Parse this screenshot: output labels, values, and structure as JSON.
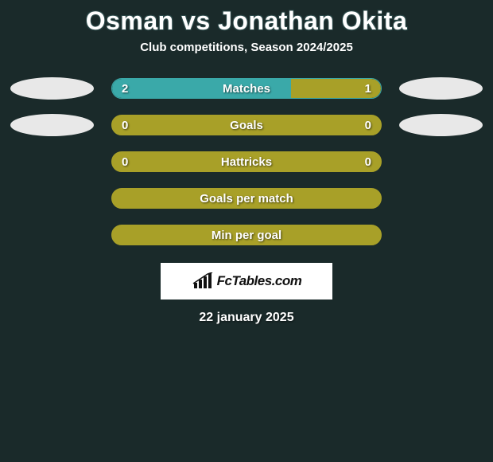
{
  "title": "Osman vs Jonathan Okita",
  "subtitle": "Club competitions, Season 2024/2025",
  "date": "22 january 2025",
  "logo_text": "FcTables.com",
  "colors": {
    "background": "#1a2a2a",
    "bar_teal": "#3aa9a9",
    "bar_olive": "#a8a028",
    "bar_olive_border": "#a8a028",
    "bar_teal_border": "#3aa9a9",
    "text": "#ffffff"
  },
  "rows": [
    {
      "label": "Matches",
      "left_val": "2",
      "right_val": "1",
      "left_pct": 66.7,
      "right_pct": 33.3,
      "left_color": "#3aa9a9",
      "right_color": "#a8a028",
      "border_color": "#3aa9a9",
      "show_avatars": true
    },
    {
      "label": "Goals",
      "left_val": "0",
      "right_val": "0",
      "left_pct": 0,
      "right_pct": 0,
      "left_color": "#a8a028",
      "right_color": "#a8a028",
      "border_color": "#a8a028",
      "bg_fill": "#a8a028",
      "show_avatars": true
    },
    {
      "label": "Hattricks",
      "left_val": "0",
      "right_val": "0",
      "left_pct": 0,
      "right_pct": 0,
      "left_color": "#a8a028",
      "right_color": "#a8a028",
      "border_color": "#a8a028",
      "bg_fill": "#a8a028",
      "show_avatars": false
    },
    {
      "label": "Goals per match",
      "left_val": "",
      "right_val": "",
      "left_pct": 0,
      "right_pct": 0,
      "left_color": "#a8a028",
      "right_color": "#a8a028",
      "border_color": "#a8a028",
      "bg_fill": "#a8a028",
      "show_avatars": false
    },
    {
      "label": "Min per goal",
      "left_val": "",
      "right_val": "",
      "left_pct": 0,
      "right_pct": 0,
      "left_color": "#a8a028",
      "right_color": "#a8a028",
      "border_color": "#a8a028",
      "bg_fill": "#a8a028",
      "show_avatars": false
    }
  ]
}
